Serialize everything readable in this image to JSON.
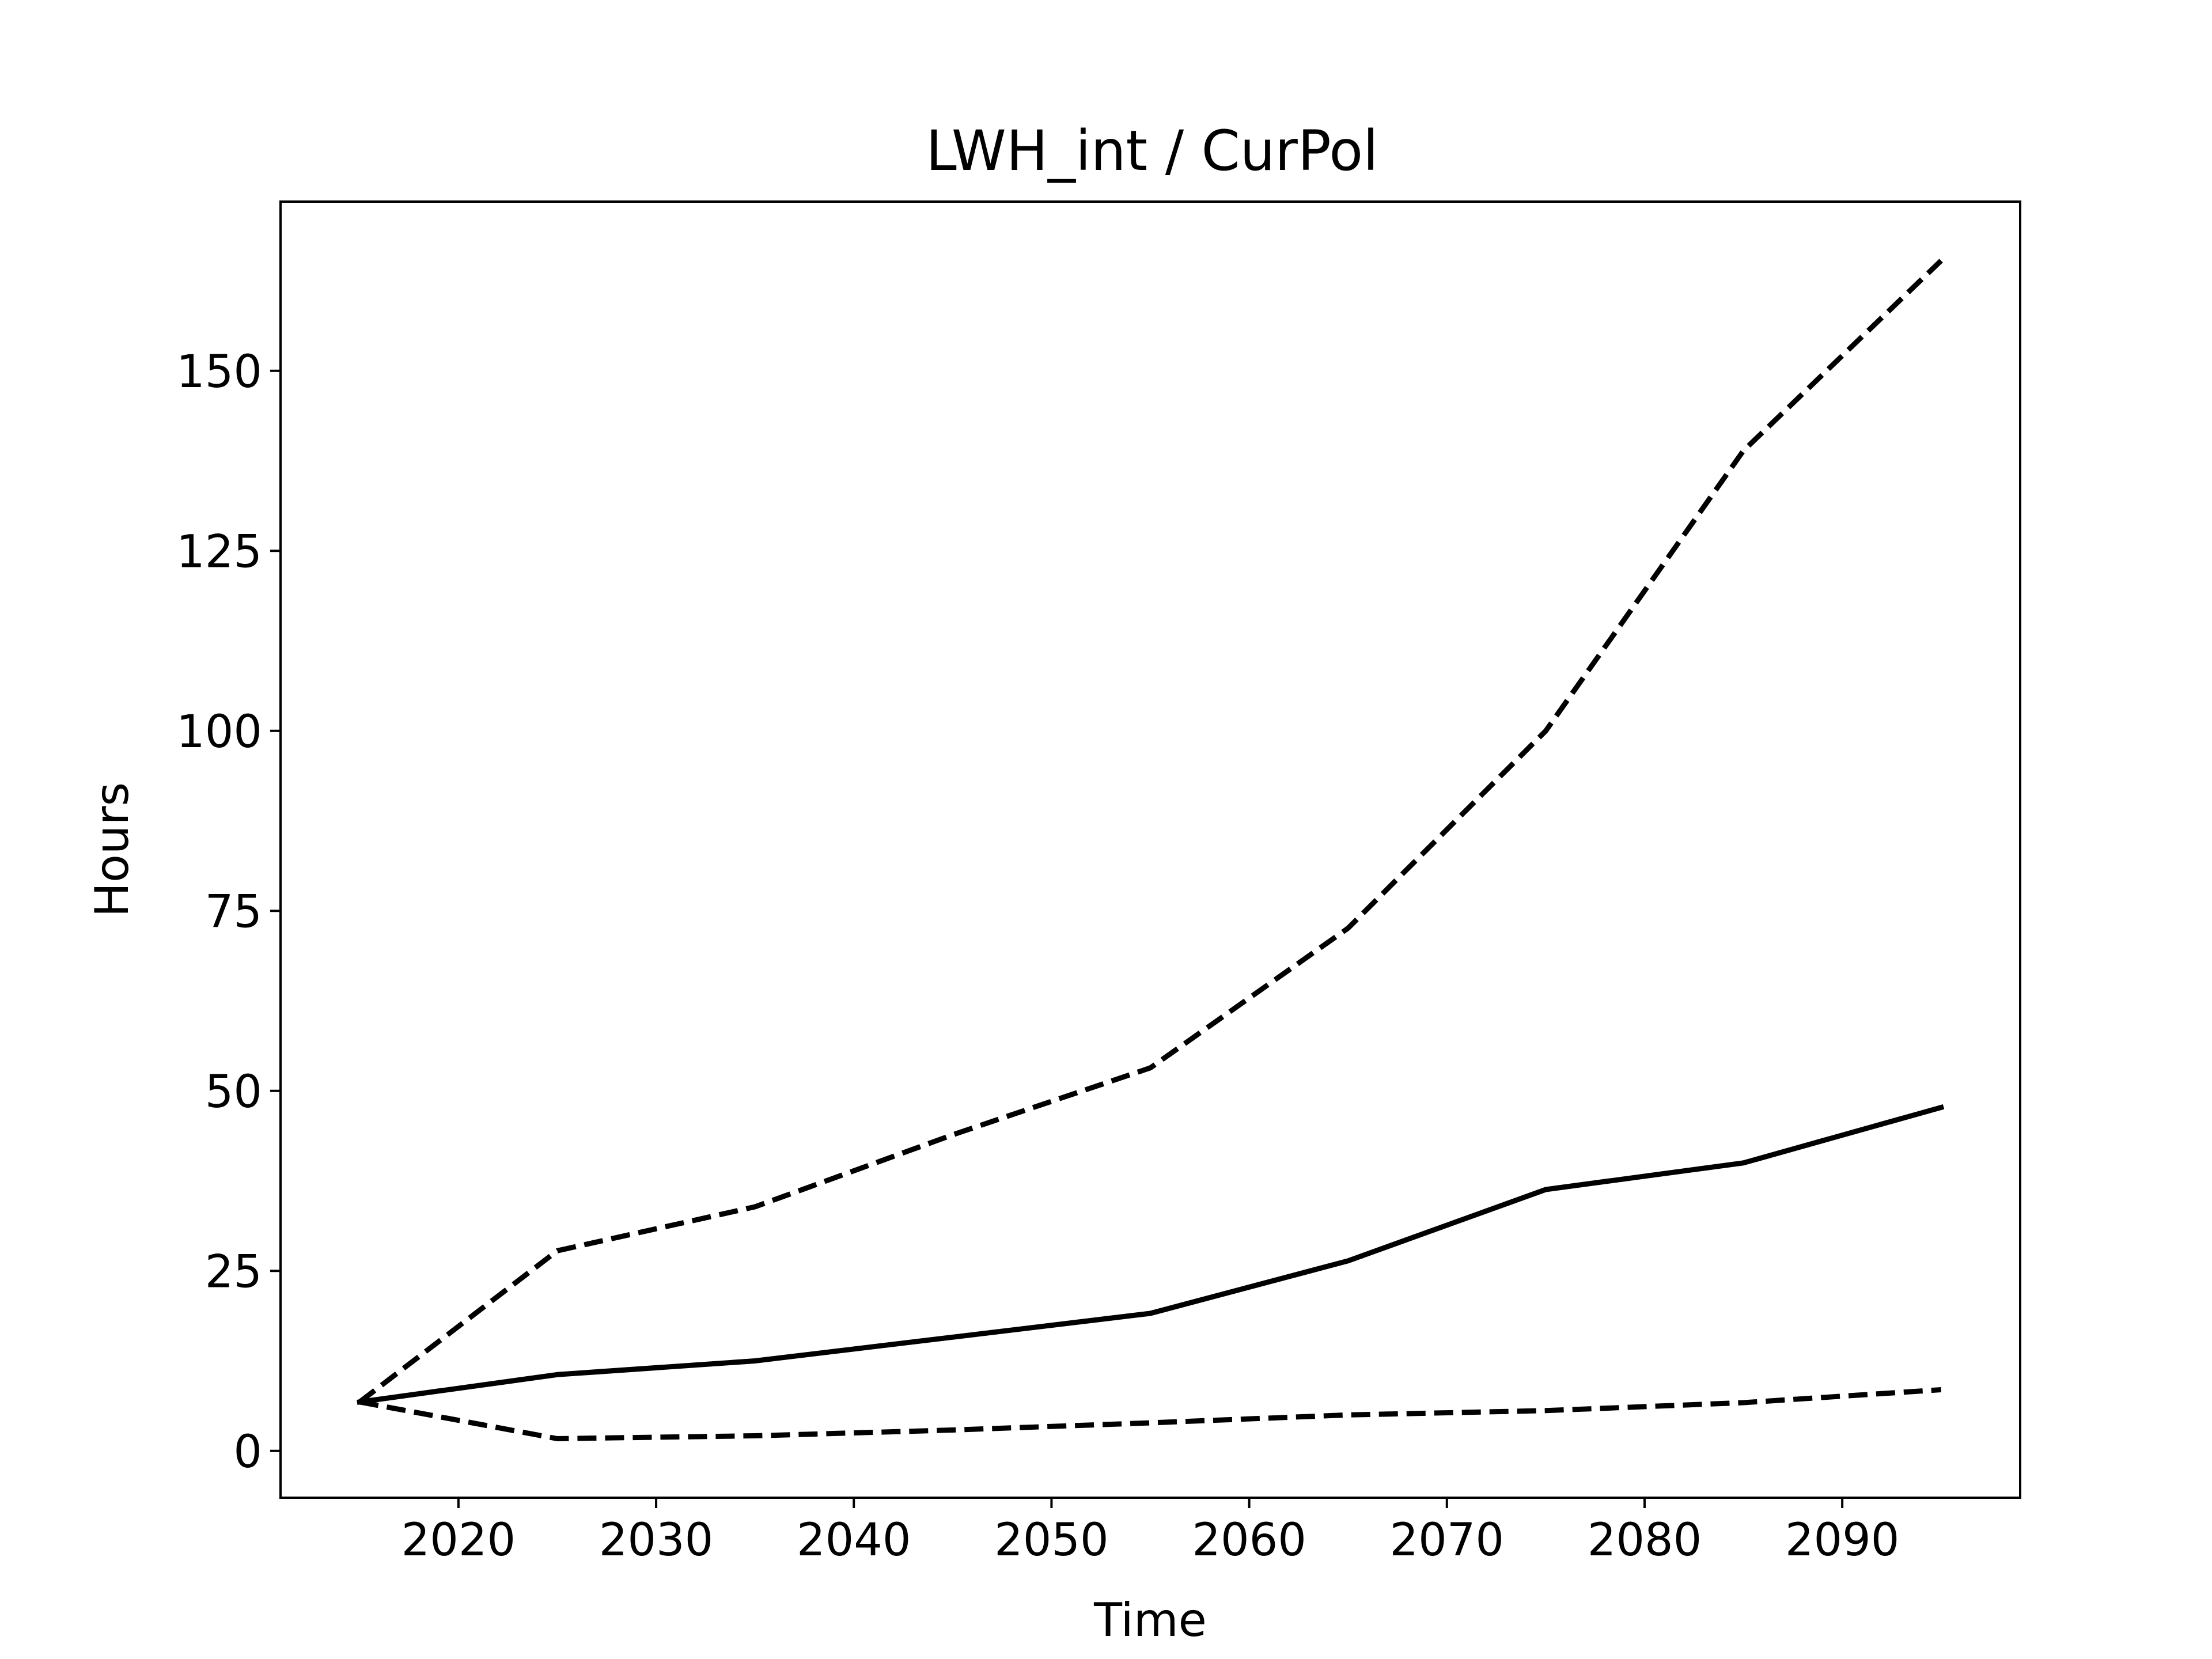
{
  "chart_data": {
    "type": "line",
    "title": "LWH_int / CurPol",
    "xlabel": "Time",
    "ylabel": "Hours",
    "x": [
      2015,
      2025,
      2035,
      2045,
      2055,
      2065,
      2075,
      2085,
      2095
    ],
    "xlim": [
      2011,
      2099
    ],
    "ylim": [
      -6.5,
      173.5
    ],
    "xticks": [
      2020,
      2030,
      2040,
      2050,
      2060,
      2070,
      2080,
      2090
    ],
    "yticks": [
      0,
      25,
      50,
      75,
      100,
      125,
      150
    ],
    "grid": false,
    "series": [
      {
        "style": "solid",
        "values": [
          6.8,
          10.6,
          12.5,
          15.8,
          19.1,
          26.4,
          36.3,
          40.0,
          47.7
        ]
      },
      {
        "style": "dashed",
        "values": [
          6.8,
          27.8,
          33.9,
          43.9,
          53.2,
          72.6,
          100.0,
          138.9,
          165.3
        ]
      },
      {
        "style": "dashed",
        "values": [
          6.8,
          1.7,
          2.1,
          2.9,
          3.9,
          5.0,
          5.6,
          6.7,
          8.5
        ]
      }
    ],
    "colors": {
      "line": "#000000",
      "axes": "#000000",
      "background": "#ffffff"
    }
  }
}
